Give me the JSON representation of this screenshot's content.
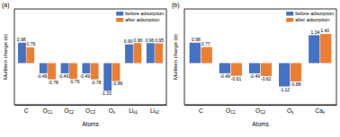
{
  "chart_data": [
    {
      "type": "bar",
      "title": "(a)",
      "x_label": "Atoms",
      "y_label": "Mulliken charge (e)",
      "categories": [
        "C",
        "OC1",
        "OC2",
        "OC3",
        "Os",
        "Lis1",
        "Lis2"
      ],
      "series": [
        {
          "name": "before adsorption",
          "color": "#4472c4",
          "values": [
            0.98,
            -0.49,
            -0.49,
            -0.49,
            -1.33,
            0.9,
            0.96
          ],
          "value_labels": [
            "0.98",
            "-0.49",
            "-0.49",
            "-0.49",
            "-1.33",
            "0.90",
            "0.96"
          ]
        },
        {
          "name": "after adsorption",
          "color": "#ed7d31",
          "values": [
            0.76,
            -0.78,
            -0.76,
            -0.78,
            -0.86,
            0.96,
            0.95
          ],
          "value_labels": [
            "0.76",
            "-0.78",
            "-0.76",
            "-0.78",
            "-0.86",
            "0.96",
            "0.95"
          ]
        }
      ],
      "ylim": [
        -2,
        2.6
      ],
      "tick_labels": "x",
      "data_labels": true,
      "legend": "upper right"
    },
    {
      "type": "bar",
      "title": "(b)",
      "x_label": "Atoms",
      "y_label": "Mulliken charge (e)",
      "categories": [
        "C",
        "OC1",
        "OC2",
        "Os",
        "Cas"
      ],
      "series": [
        {
          "name": "before adsorption",
          "color": "#4472c4",
          "values": [
            0.98,
            -0.49,
            -0.49,
            -1.12,
            1.34
          ],
          "value_labels": [
            "0.98",
            "-0.49",
            "-0.49",
            "-1.12",
            "1.34"
          ]
        },
        {
          "name": "after adsorption",
          "color": "#ed7d31",
          "values": [
            0.77,
            -0.61,
            -0.62,
            -0.88,
            1.4
          ],
          "value_labels": [
            "0.77",
            "-0.61",
            "-0.62",
            "-0.88",
            "1.40"
          ]
        }
      ],
      "ylim": [
        -2,
        2.6
      ],
      "tick_labels": "x",
      "data_labels": true,
      "legend": "upper right"
    }
  ]
}
